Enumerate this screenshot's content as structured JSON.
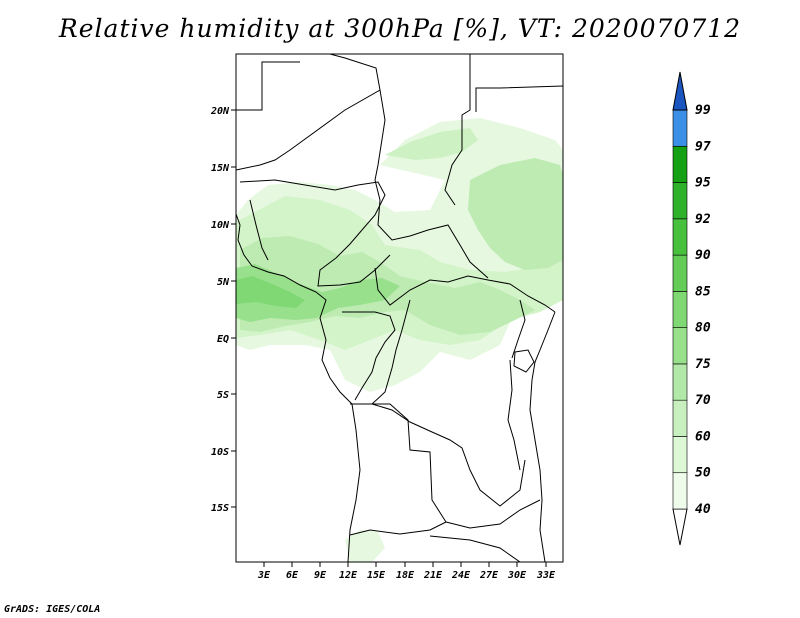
{
  "title": "Relative humidity at 300hPa [%], VT: 2020070712",
  "footer": "GrADS: IGES/COLA",
  "map": {
    "lat_labels": [
      "20N",
      "15N",
      "10N",
      "5N",
      "EQ",
      "5S",
      "10S",
      "15S"
    ],
    "lon_labels": [
      "3E",
      "6E",
      "9E",
      "12E",
      "15E",
      "18E",
      "21E",
      "24E",
      "27E",
      "30E",
      "33E"
    ]
  },
  "colorbar": {
    "levels": [
      "40",
      "50",
      "60",
      "70",
      "75",
      "80",
      "85",
      "90",
      "92",
      "95",
      "97",
      "99"
    ],
    "colors": [
      "#eefbea",
      "#def7d6",
      "#c8f0bf",
      "#b2e9a8",
      "#98e08c",
      "#7fd874",
      "#63cd58",
      "#47c03e",
      "#2fb12b",
      "#16a014",
      "#3c8fe6",
      "#1e6fd8",
      "#1a55c0"
    ]
  },
  "chart_data": {
    "type": "heatmap",
    "title": "Relative humidity at 300hPa [%], VT: 2020070712",
    "variable": "Relative humidity at 300hPa",
    "units": "%",
    "valid_time": "2020070712",
    "lon_range_deg_east": [
      0,
      35
    ],
    "lat_range_deg_north": [
      -20,
      24
    ],
    "contour_levels": [
      40,
      50,
      60,
      70,
      75,
      80,
      85,
      90,
      92,
      95,
      97,
      99
    ],
    "colorbar_orientation": "vertical",
    "colorbar_position": "right"
  }
}
